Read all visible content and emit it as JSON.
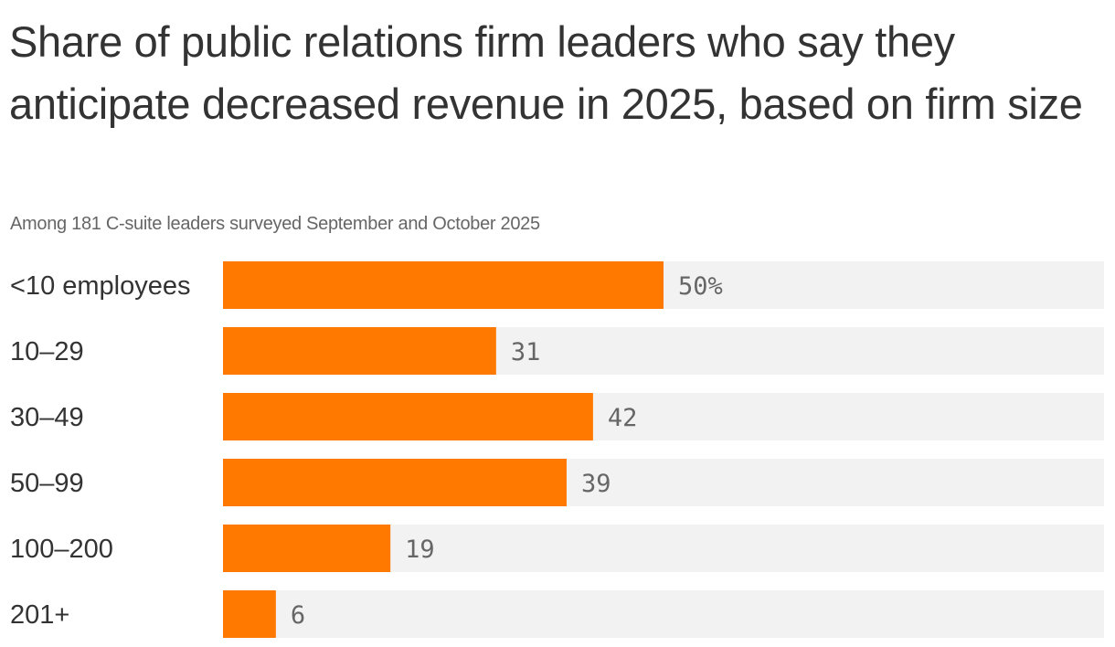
{
  "title": "Share of public relations firm leaders who say they anticipate decreased revenue in 2025, based on firm size",
  "subtitle": "Among 181 C-suite leaders surveyed September and October 2025",
  "chart_data": {
    "type": "bar",
    "orientation": "horizontal",
    "title": "Share of public relations firm leaders who say they anticipate decreased revenue in 2025, based on firm size",
    "subtitle": "Among 181 C-suite leaders surveyed September and October 2025",
    "categories": [
      "<10 employees",
      "10–29",
      "30–49",
      "50–99",
      "100–200",
      "201+"
    ],
    "values": [
      50,
      31,
      42,
      39,
      19,
      6
    ],
    "value_labels": [
      "50%",
      "31",
      "42",
      "39",
      "19",
      "6"
    ],
    "xlim": [
      0,
      100
    ],
    "grid": false,
    "legend": "none",
    "colors": {
      "bar": "#ff7900",
      "track": "#f2f2f2",
      "value_text": "#666666",
      "label_text": "#333333"
    }
  }
}
